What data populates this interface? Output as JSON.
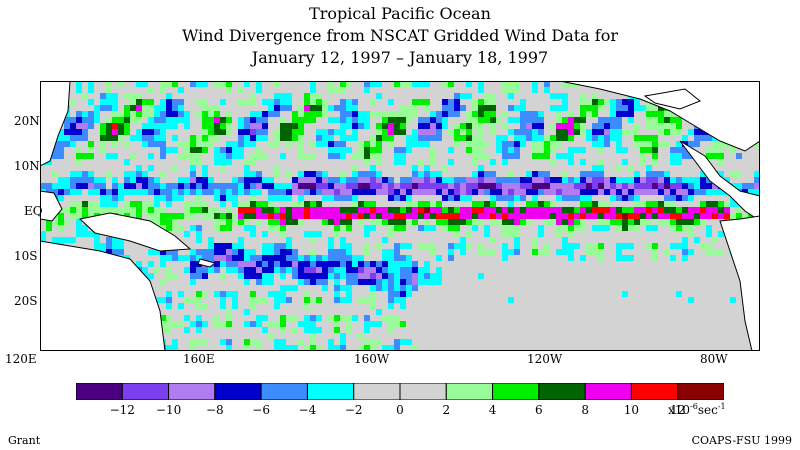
{
  "title": {
    "line1": "Tropical Pacific Ocean",
    "line2": "Wind Divergence from NSCAT Gridded Wind Data for",
    "line3": "January 12, 1997 – January 18, 1997"
  },
  "map": {
    "lon_range": [
      120,
      285
    ],
    "lat_range": [
      -30,
      30
    ],
    "lat_labels": [
      "20N",
      "10N",
      "EQ",
      "10S",
      "20S"
    ],
    "lon_labels": [
      "120E",
      "160E",
      "160W",
      "120W",
      "80W"
    ],
    "land_color": "#ffffff",
    "coast_color": "#000000"
  },
  "legend": {
    "colors": [
      "#4b0082",
      "#7b3ff0",
      "#b07cf0",
      "#0000cd",
      "#3c8cff",
      "#00ffff",
      "#d3d3d3",
      "#d3d3d3",
      "#98fb98",
      "#00ee00",
      "#006400",
      "#ee00ee",
      "#ff0000",
      "#8b0000"
    ],
    "tick_labels": [
      "-12",
      "-10",
      "-8",
      "-6",
      "-4",
      "-2",
      "0",
      "2",
      "4",
      "6",
      "8",
      "10",
      "12"
    ],
    "unit_prefix": "x10",
    "unit_exp": "-6",
    "unit_suffix": "sec",
    "unit_exp2": "-1"
  },
  "footer": {
    "left": "Grant",
    "right": "COAPS-FSU 1999"
  }
}
